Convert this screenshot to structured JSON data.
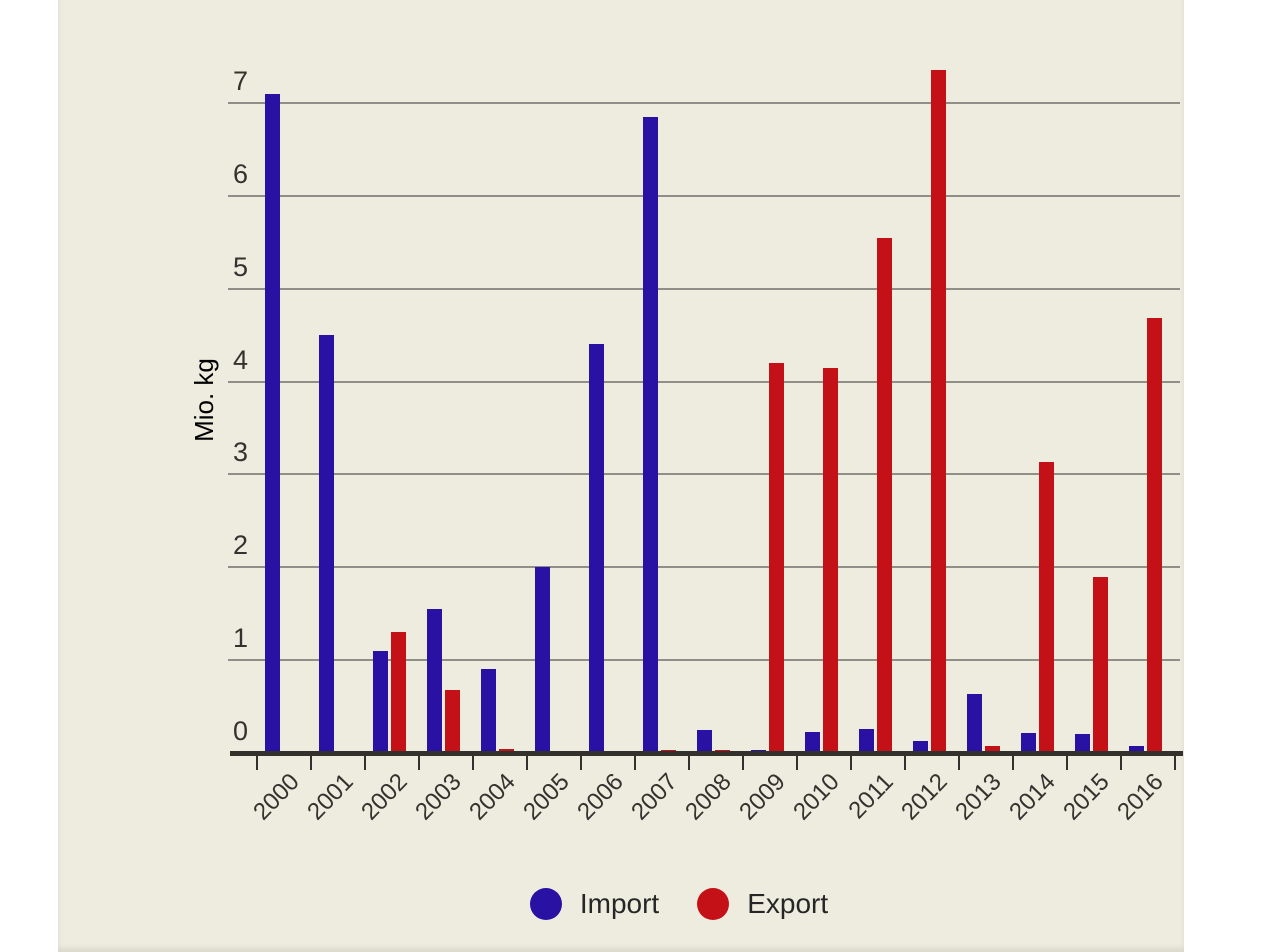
{
  "page": {
    "background": "#ffffff",
    "panel_background": "#edecdf"
  },
  "chart_data": {
    "type": "bar",
    "title": "",
    "subtitle": "",
    "xlabel": "",
    "ylabel": "Mio. kg",
    "unit": "Mio. kg",
    "categories": [
      "2000",
      "2001",
      "2002",
      "2003",
      "2004",
      "2005",
      "2006",
      "2007",
      "2008",
      "2009",
      "2010",
      "2011",
      "2012",
      "2013",
      "2014",
      "2015",
      "2016"
    ],
    "series": [
      {
        "name": "Import",
        "color": "#2912a3",
        "values": [
          7.1,
          4.5,
          1.1,
          1.55,
          0.9,
          2.0,
          4.4,
          6.85,
          0.25,
          0.03,
          0.23,
          0.26,
          0.13,
          0.64,
          0.22,
          0.2,
          0.07
        ]
      },
      {
        "name": "Export",
        "color": "#c41118",
        "values": [
          0.01,
          0.02,
          1.3,
          0.68,
          0.04,
          0,
          0,
          0.03,
          0.03,
          4.2,
          4.15,
          5.55,
          7.35,
          0.08,
          3.13,
          1.9,
          4.68
        ]
      }
    ],
    "y_ticks": [
      0,
      1,
      2,
      3,
      4,
      5,
      6,
      7
    ],
    "ylim": [
      0,
      7.4
    ],
    "grid": "horizontal-only",
    "grid_color": "#8f8f87",
    "axis_color": "#32312c",
    "text_color": "#33322e",
    "legend_position": "bottom"
  }
}
